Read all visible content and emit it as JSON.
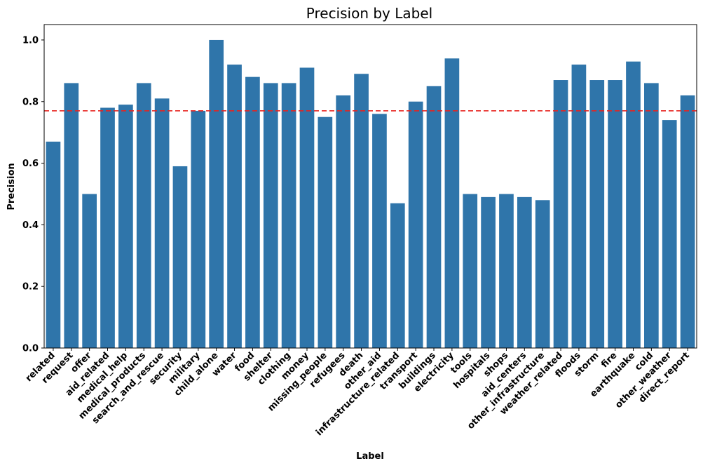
{
  "chart_data": {
    "type": "bar",
    "title": "Precision by Label",
    "xlabel": "Label",
    "ylabel": "Precision",
    "ylim": [
      0,
      1.05
    ],
    "yticks": [
      "0.0",
      "0.2",
      "0.4",
      "0.6",
      "0.8",
      "1.0"
    ],
    "reference_line": {
      "value": 0.77,
      "style": "dashed",
      "color": "#e8231f"
    },
    "bar_color": "#2f75aa",
    "grid": false,
    "categories": [
      "related",
      "request",
      "offer",
      "aid_related",
      "medical_help",
      "medical_products",
      "search_and_rescue",
      "security",
      "military",
      "child_alone",
      "water",
      "food",
      "shelter",
      "clothing",
      "money",
      "missing_people",
      "refugees",
      "death",
      "other_aid",
      "infrastructure_related",
      "transport",
      "buildings",
      "electricity",
      "tools",
      "hospitals",
      "shops",
      "aid_centers",
      "other_infrastructure",
      "weather_related",
      "floods",
      "storm",
      "fire",
      "earthquake",
      "cold",
      "other_weather",
      "direct_report"
    ],
    "values": [
      0.67,
      0.86,
      0.5,
      0.78,
      0.79,
      0.86,
      0.81,
      0.59,
      0.77,
      1.0,
      0.92,
      0.88,
      0.86,
      0.86,
      0.91,
      0.75,
      0.82,
      0.89,
      0.76,
      0.47,
      0.8,
      0.85,
      0.94,
      0.5,
      0.49,
      0.5,
      0.49,
      0.48,
      0.87,
      0.92,
      0.87,
      0.87,
      0.93,
      0.86,
      0.74,
      0.82
    ]
  }
}
